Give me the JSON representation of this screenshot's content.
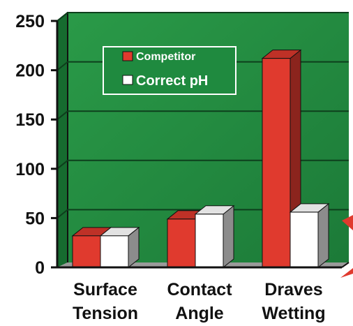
{
  "chart_data": {
    "type": "bar",
    "categories": [
      [
        "Surface",
        "Tension"
      ],
      [
        "Contact",
        "Angle"
      ],
      [
        "Draves",
        "Wetting"
      ]
    ],
    "series": [
      {
        "name": "Competitor",
        "values": [
          32,
          49,
          212
        ],
        "color": "#e03a2e"
      },
      {
        "name": "Correct pH",
        "values": [
          32,
          54,
          56
        ],
        "color": "#ffffff"
      }
    ],
    "ylim": [
      0,
      250
    ],
    "yticks": [
      0,
      50,
      100,
      150,
      200,
      250
    ],
    "grid": true,
    "legend_position": "top-left",
    "plot_background": "#1f8a3f",
    "title": "",
    "xlabel": "",
    "ylabel": ""
  }
}
